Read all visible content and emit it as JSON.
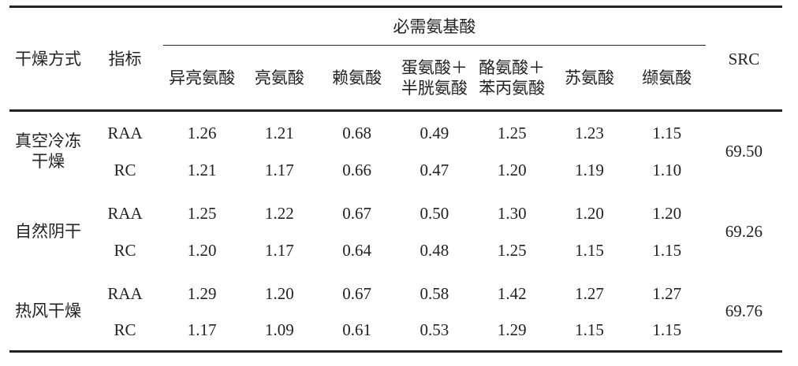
{
  "table": {
    "headers": {
      "method": "干燥方式",
      "indicator": "指标",
      "group": "必需氨基酸",
      "amino_acids": [
        "异亮氨酸",
        "亮氨酸",
        "赖氨酸",
        "蛋氨酸＋半胱氨酸",
        "酪氨酸＋苯丙氨酸",
        "苏氨酸",
        "缬氨酸"
      ],
      "src": "SRC"
    },
    "rows": [
      {
        "method": "真空冷冻干燥",
        "src": "69.50",
        "lines": [
          {
            "indicator": "RAA",
            "values": [
              "1.26",
              "1.21",
              "0.68",
              "0.49",
              "1.25",
              "1.23",
              "1.15"
            ]
          },
          {
            "indicator": "RC",
            "values": [
              "1.21",
              "1.17",
              "0.66",
              "0.47",
              "1.20",
              "1.19",
              "1.10"
            ]
          }
        ]
      },
      {
        "method": "自然阴干",
        "src": "69.26",
        "lines": [
          {
            "indicator": "RAA",
            "values": [
              "1.25",
              "1.22",
              "0.67",
              "0.50",
              "1.30",
              "1.20",
              "1.20"
            ]
          },
          {
            "indicator": "RC",
            "values": [
              "1.20",
              "1.17",
              "0.64",
              "0.48",
              "1.25",
              "1.15",
              "1.15"
            ]
          }
        ]
      },
      {
        "method": "热风干燥",
        "src": "69.76",
        "lines": [
          {
            "indicator": "RAA",
            "values": [
              "1.29",
              "1.20",
              "0.67",
              "0.58",
              "1.42",
              "1.27",
              "1.27"
            ]
          },
          {
            "indicator": "RC",
            "values": [
              "1.17",
              "1.09",
              "0.61",
              "0.53",
              "1.29",
              "1.15",
              "1.15"
            ]
          }
        ]
      }
    ]
  }
}
